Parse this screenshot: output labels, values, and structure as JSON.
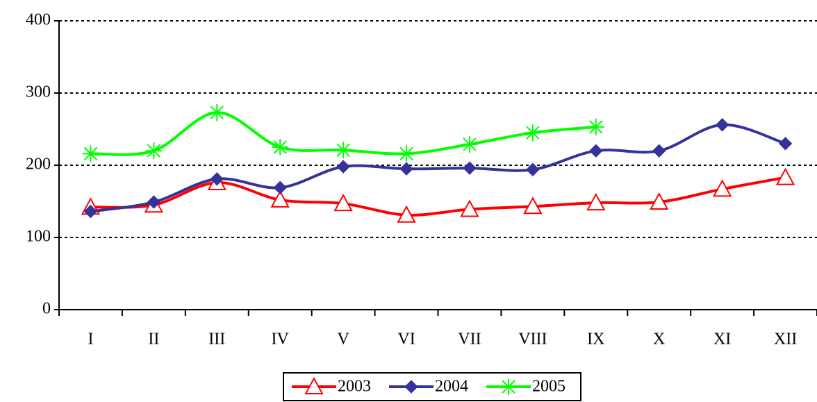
{
  "chart_data": {
    "type": "line",
    "categories": [
      "I",
      "II",
      "III",
      "IV",
      "V",
      "VI",
      "VII",
      "VIII",
      "IX",
      "X",
      "XI",
      "XII"
    ],
    "series": [
      {
        "name": "2003",
        "color": "#ff0000",
        "marker": "triangle",
        "values": [
          142,
          145,
          176,
          152,
          147,
          131,
          139,
          143,
          148,
          149,
          167,
          183
        ]
      },
      {
        "name": "2004",
        "color": "#333399",
        "marker": "diamond",
        "values": [
          136,
          149,
          181,
          169,
          198,
          195,
          196,
          194,
          220,
          220,
          256,
          230
        ]
      },
      {
        "name": "2005",
        "color": "#00ff00",
        "marker": "asterisk",
        "values": [
          216,
          220,
          273,
          225,
          221,
          216,
          229,
          245,
          253,
          null,
          null,
          null
        ]
      }
    ],
    "ylim": [
      0,
      400
    ],
    "yticks": [
      0,
      100,
      200,
      300,
      400
    ],
    "grid": true,
    "legend": "bottom"
  }
}
